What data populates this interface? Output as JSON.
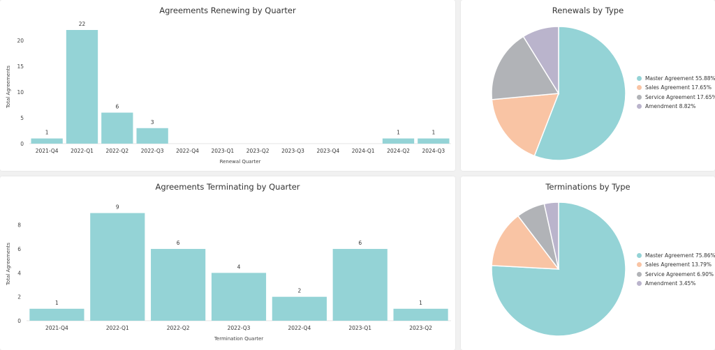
{
  "colors": {
    "teal": "#94d3d6",
    "peach": "#f9c4a4",
    "gray": "#b1b3b7",
    "lavender": "#bab4cc"
  },
  "panels": {
    "renewing_title": "Agreements Renewing by Quarter",
    "renewals_type_title": "Renewals by Type",
    "terminating_title": "Agreements Terminating by Quarter",
    "terminations_type_title": "Terminations by Type"
  },
  "chart_data": [
    {
      "type": "bar",
      "title": "Agreements Renewing by Quarter",
      "xlabel": "Renewal Quarter",
      "ylabel": "Total Agreements",
      "categories": [
        "2021-Q4",
        "2022-Q1",
        "2022-Q2",
        "2022-Q3",
        "2022-Q4",
        "2023-Q1",
        "2023-Q2",
        "2023-Q3",
        "2023-Q4",
        "2024-Q1",
        "2024-Q2",
        "2024-Q3"
      ],
      "values": [
        1,
        22,
        6,
        3,
        0,
        0,
        0,
        0,
        0,
        0,
        1,
        1
      ],
      "data_labels": [
        "1",
        "22",
        "6",
        "3",
        "",
        "",
        "",
        "",
        "",
        "",
        "1",
        "1"
      ],
      "ylim": [
        0,
        22
      ],
      "yticks": [
        0,
        5,
        10,
        15,
        20
      ],
      "grid": false
    },
    {
      "type": "pie",
      "title": "Renewals by Type",
      "labels": [
        "Master Agreement",
        "Sales Agreement",
        "Service Agreement",
        "Amendment"
      ],
      "values": [
        55.88,
        17.65,
        17.65,
        8.82
      ],
      "legend_text": [
        "Master Agreement 55.88%",
        "Sales Agreement 17.65%",
        "Service Agreement 17.65%",
        "Amendment 8.82%"
      ],
      "legend": "right"
    },
    {
      "type": "bar",
      "title": "Agreements Terminating by Quarter",
      "xlabel": "Termination Quarter",
      "ylabel": "Total Agreements",
      "categories": [
        "2021-Q4",
        "2022-Q1",
        "2022-Q2",
        "2022-Q3",
        "2022-Q4",
        "2023-Q1",
        "2023-Q2"
      ],
      "values": [
        1,
        9,
        6,
        4,
        2,
        6,
        1
      ],
      "data_labels": [
        "1",
        "9",
        "6",
        "4",
        "2",
        "6",
        "1"
      ],
      "ylim": [
        0,
        9.5
      ],
      "yticks": [
        0,
        2,
        4,
        6,
        8
      ],
      "grid": false
    },
    {
      "type": "pie",
      "title": "Terminations by Type",
      "labels": [
        "Master Agreement",
        "Sales Agreement",
        "Service Agreement",
        "Amendment"
      ],
      "values": [
        75.86,
        13.79,
        6.9,
        3.45
      ],
      "legend_text": [
        "Master Agreement 75.86%",
        "Sales Agreement 13.79%",
        "Service Agreement 6.90%",
        "Amendment 3.45%"
      ],
      "legend": "right"
    }
  ]
}
